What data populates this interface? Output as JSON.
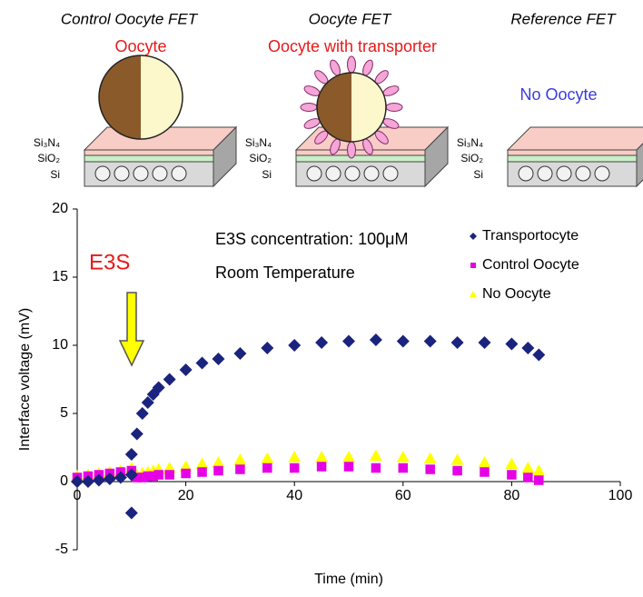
{
  "diagram": {
    "fets": [
      {
        "title": "Control Oocyte FET",
        "label": "Oocyte"
      },
      {
        "title": "Oocyte FET",
        "label": "Oocyte with transporter"
      },
      {
        "title": "Reference FET",
        "label": "No Oocyte"
      }
    ],
    "layers": [
      "Si₃N₄",
      "SiO₂",
      "Si"
    ]
  },
  "chart_data": {
    "type": "scatter",
    "xlabel": "Time (min)",
    "ylabel": "Interface voltage (mV)",
    "xlim": [
      0,
      100
    ],
    "xticks": [
      0,
      20,
      40,
      60,
      80,
      100
    ],
    "ylim": [
      -5,
      20
    ],
    "yticks": [
      -5,
      0,
      5,
      10,
      15,
      20
    ],
    "annotations": [
      "E3S concentration: 100μM",
      "Room Temperature",
      "E3S"
    ],
    "series": [
      {
        "name": "Transportocyte",
        "color": "#1a237e",
        "marker": "diamond",
        "x": [
          0,
          2,
          4,
          6,
          8,
          10,
          10,
          10,
          11,
          12,
          13,
          14,
          15,
          17,
          20,
          23,
          26,
          30,
          35,
          40,
          45,
          50,
          55,
          60,
          65,
          70,
          75,
          80,
          83,
          85
        ],
        "values": [
          0,
          0,
          0.1,
          0.2,
          0.3,
          0.5,
          2,
          -2.3,
          3.5,
          5,
          5.8,
          6.4,
          6.9,
          7.5,
          8.2,
          8.7,
          9,
          9.4,
          9.8,
          10,
          10.2,
          10.3,
          10.4,
          10.3,
          10.3,
          10.2,
          10.2,
          10.1,
          9.8,
          9.3
        ]
      },
      {
        "name": "Control Oocyte",
        "color": "#e600e6",
        "marker": "square",
        "x": [
          0,
          2,
          4,
          6,
          8,
          10,
          11,
          12,
          13,
          14,
          15,
          17,
          20,
          23,
          26,
          30,
          35,
          40,
          45,
          50,
          55,
          60,
          65,
          70,
          75,
          80,
          83,
          85
        ],
        "values": [
          0.3,
          0.4,
          0.5,
          0.6,
          0.7,
          0.8,
          0.3,
          0.3,
          0.4,
          0.4,
          0.5,
          0.5,
          0.6,
          0.7,
          0.8,
          0.9,
          1,
          1,
          1.1,
          1.1,
          1,
          1,
          0.9,
          0.8,
          0.7,
          0.5,
          0.3,
          0.1
        ]
      },
      {
        "name": "No Oocyte",
        "color": "#ffff00",
        "marker": "triangle",
        "x": [
          0,
          2,
          4,
          6,
          8,
          10,
          11,
          12,
          13,
          14,
          15,
          17,
          20,
          23,
          26,
          30,
          35,
          40,
          45,
          50,
          55,
          60,
          65,
          70,
          75,
          80,
          83,
          85
        ],
        "values": [
          0.4,
          0.5,
          0.6,
          0.7,
          0.8,
          1,
          0.5,
          0.6,
          0.7,
          0.8,
          0.9,
          1,
          1.1,
          1.3,
          1.4,
          1.6,
          1.7,
          1.8,
          1.8,
          1.8,
          1.9,
          1.8,
          1.7,
          1.6,
          1.4,
          1.3,
          1,
          0.8
        ]
      }
    ]
  }
}
